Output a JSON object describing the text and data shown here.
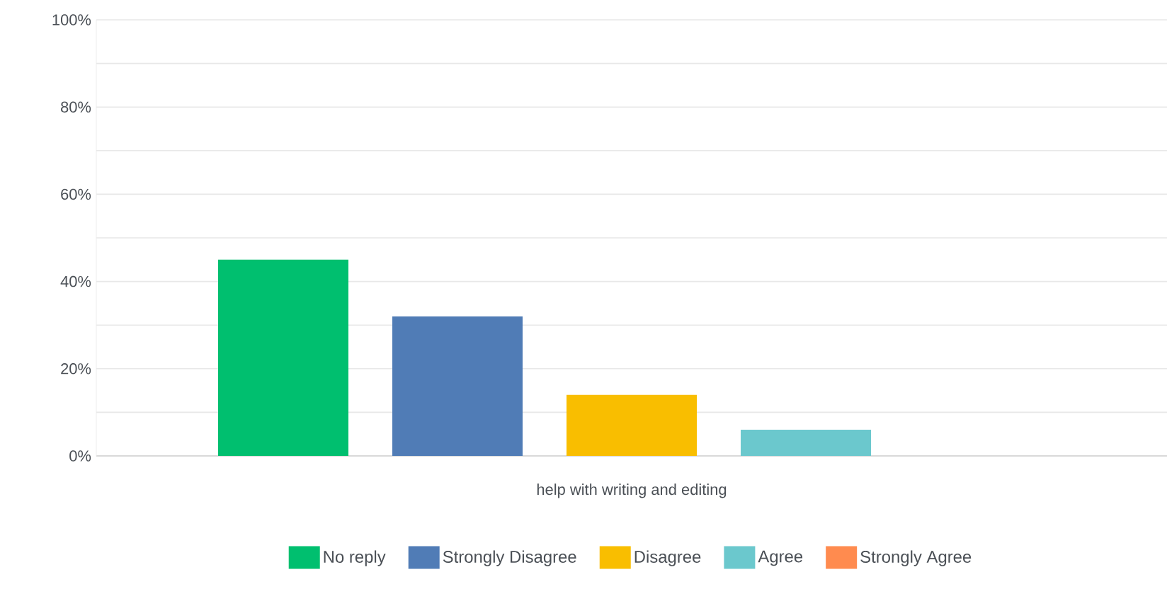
{
  "chart_data": {
    "type": "bar",
    "categories": [
      "help with writing and editing"
    ],
    "series": [
      {
        "name": "No reply",
        "color": "#00bf6f",
        "values": [
          45
        ]
      },
      {
        "name": "Strongly Disagree",
        "color": "#507cb6",
        "values": [
          32
        ]
      },
      {
        "name": "Disagree",
        "color": "#f9be00",
        "values": [
          14
        ]
      },
      {
        "name": "Agree",
        "color": "#6bc8cd",
        "values": [
          6
        ]
      },
      {
        "name": "Strongly Agree",
        "color": "#ff8b4f",
        "values": [
          0
        ]
      }
    ],
    "ylim": [
      0,
      100
    ],
    "yticks": [
      {
        "value": 0,
        "label": "0%"
      },
      {
        "value": 10,
        "label": null
      },
      {
        "value": 20,
        "label": "20%"
      },
      {
        "value": 30,
        "label": null
      },
      {
        "value": 40,
        "label": "40%"
      },
      {
        "value": 50,
        "label": null
      },
      {
        "value": 60,
        "label": "60%"
      },
      {
        "value": 70,
        "label": null
      },
      {
        "value": 80,
        "label": "80%"
      },
      {
        "value": 90,
        "label": null
      },
      {
        "value": 100,
        "label": "100%"
      }
    ],
    "grid": "y",
    "legend": "bottom"
  }
}
